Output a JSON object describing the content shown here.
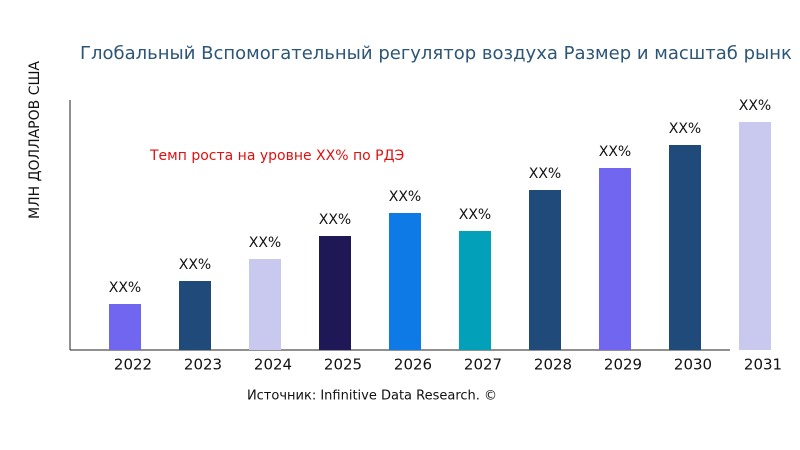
{
  "chart_data": {
    "type": "bar",
    "title": "Глобальный Вспомогательный регулятор воздуха Размер и масштаб рынк",
    "y_label": "МЛН ДОЛЛАРОВ США",
    "annotation": "Темп роста на уровне XX% по РДЭ",
    "source": "Источник: Infinitive Data Research. ©",
    "categories": [
      "2022",
      "2023",
      "2024",
      "2025",
      "2026",
      "2027",
      "2028",
      "2029",
      "2030",
      "2031"
    ],
    "values": [
      46,
      69,
      91,
      114,
      137,
      119,
      160,
      182,
      205,
      228
    ],
    "value_labels": [
      "XX%",
      "XX%",
      "XX%",
      "XX%",
      "XX%",
      "XX%",
      "XX%",
      "XX%",
      "XX%",
      "XX%"
    ],
    "colors": [
      "#7166f0",
      "#1f4a7a",
      "#c9c9f0",
      "#1e1856",
      "#0d7ae6",
      "#03a0b9",
      "#1f4a7a",
      "#7166f0",
      "#1f4a7a",
      "#c9c9f0"
    ],
    "ylim": [
      0,
      250
    ]
  }
}
